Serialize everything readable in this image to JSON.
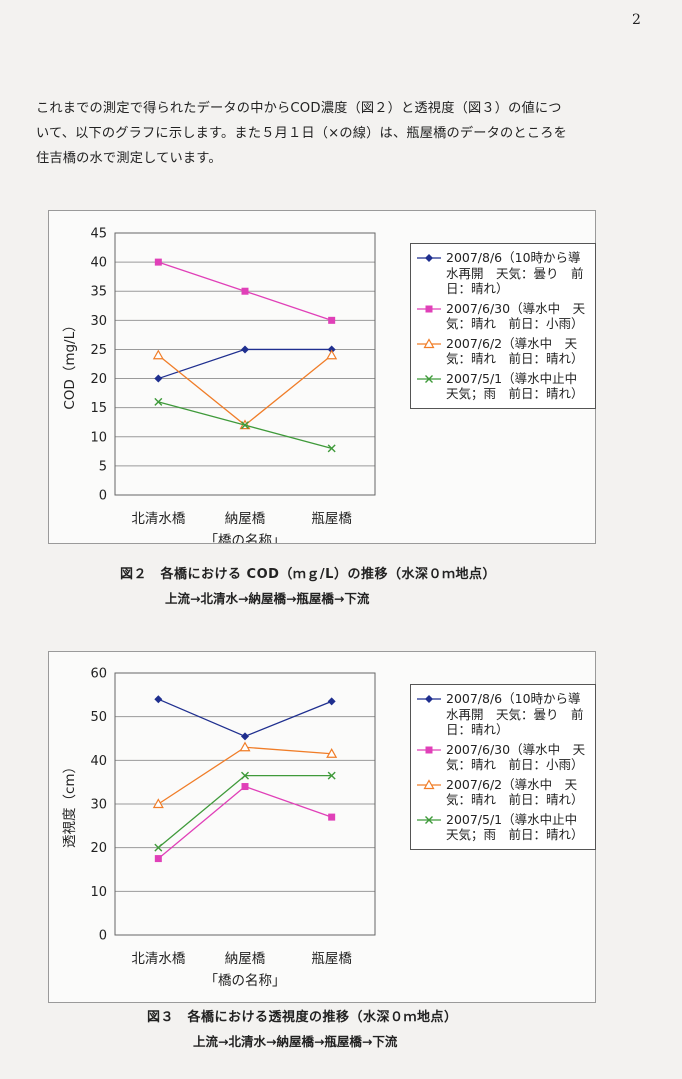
{
  "page_number": "2",
  "intro": [
    "これまでの測定で得られたデータの中からCOD濃度（図２）と透視度（図３）の値につ",
    "いて、以下のグラフに示します。また５月１日（×の線）は、瓶屋橋のデータのところを",
    "住吉橋の水で測定しています。"
  ],
  "charts": [
    {
      "caption": "図２　各橋における COD（ｍｇ/L）の推移（水深０ｍ地点）",
      "flow": "上流→北清水→納屋橋→瓶屋橋→下流"
    },
    {
      "caption": "図３　各橋における透視度の推移（水深０ｍ地点）",
      "flow": "上流→北清水→納屋橋→瓶屋橋→下流"
    }
  ],
  "chart_data": [
    {
      "type": "line",
      "categories": [
        "北清水橋",
        "納屋橋",
        "瓶屋橋"
      ],
      "xlabel": "「橋の名称」",
      "ylabel": "COD（mg/L）",
      "ylim": [
        0,
        45
      ],
      "yticks": [
        0,
        5,
        10,
        15,
        20,
        25,
        30,
        35,
        40,
        45
      ],
      "grid": "horizontal",
      "legend": "right",
      "series": [
        {
          "name": "2007/8/6（10時から導水再開　天気：曇り　前日：晴れ）",
          "values": [
            20,
            25,
            25
          ],
          "color": "#1f2f8f",
          "marker": "diamond"
        },
        {
          "name": "2007/6/30（導水中　天気：晴れ　前日：小雨）",
          "values": [
            40,
            35,
            30
          ],
          "color": "#e040b8",
          "marker": "square"
        },
        {
          "name": "2007/6/2（導水中　天気：晴れ　前日：晴れ）",
          "values": [
            24,
            12,
            24
          ],
          "color": "#f07d28",
          "marker": "triangle"
        },
        {
          "name": "2007/5/1（導水中止中　天気；雨　前日：晴れ）",
          "values": [
            16,
            12,
            8
          ],
          "color": "#3f9a3a",
          "marker": "x"
        }
      ]
    },
    {
      "type": "line",
      "categories": [
        "北清水橋",
        "納屋橋",
        "瓶屋橋"
      ],
      "xlabel": "「橋の名称」",
      "ylabel": "透視度（cm）",
      "ylim": [
        0,
        60
      ],
      "yticks": [
        0,
        10,
        20,
        30,
        40,
        50,
        60
      ],
      "grid": "horizontal",
      "legend": "right",
      "series": [
        {
          "name": "2007/8/6（10時から導水再開　天気：曇り　前日：晴れ）",
          "values": [
            54,
            45.5,
            53.5
          ],
          "color": "#1f2f8f",
          "marker": "diamond"
        },
        {
          "name": "2007/6/30（導水中　天気：晴れ　前日：小雨）",
          "values": [
            17.5,
            34,
            27
          ],
          "color": "#e040b8",
          "marker": "square"
        },
        {
          "name": "2007/6/2（導水中　天気：晴れ　前日：晴れ）",
          "values": [
            30,
            43,
            41.5
          ],
          "color": "#f07d28",
          "marker": "triangle"
        },
        {
          "name": "2007/5/1（導水中止中　天気；雨　前日：晴れ）",
          "values": [
            20,
            36.5,
            36.5
          ],
          "color": "#3f9a3a",
          "marker": "x"
        }
      ]
    }
  ]
}
